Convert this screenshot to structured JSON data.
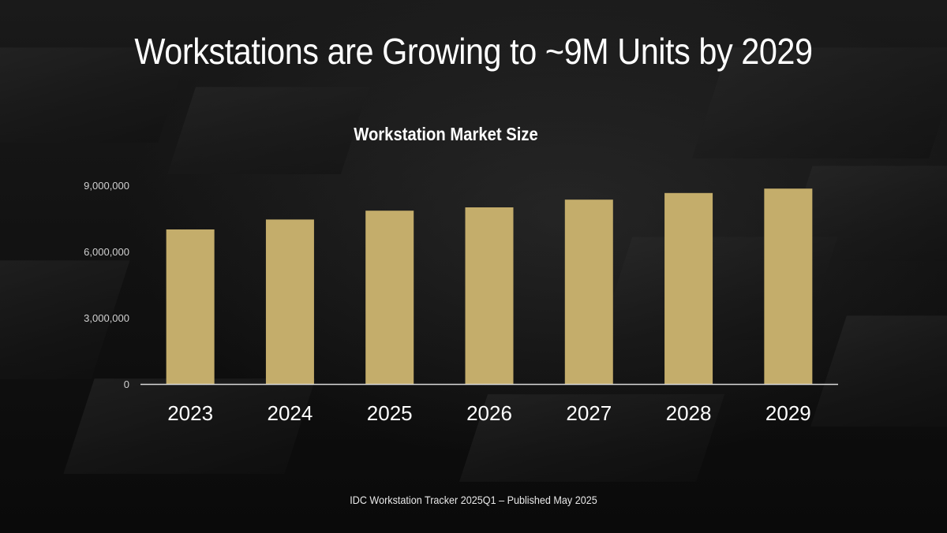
{
  "slide": {
    "title": "Workstations are Growing to ~9M Units by 2029",
    "footer": "IDC Workstation Tracker 2025Q1 – Published May 2025"
  },
  "colors": {
    "bar": "#c4ad6b",
    "axis": "#d9d9d9",
    "text": "#ffffff"
  },
  "chart_data": {
    "type": "bar",
    "title": "Workstation Market Size",
    "categories": [
      "2023",
      "2024",
      "2025",
      "2026",
      "2027",
      "2028",
      "2029"
    ],
    "values": [
      7000000,
      7450000,
      7850000,
      8000000,
      8350000,
      8650000,
      8850000
    ],
    "yticks": [
      0,
      3000000,
      6000000,
      9000000
    ],
    "ytick_labels": [
      "0",
      "3,000,000",
      "6,000,000",
      "9,000,000"
    ],
    "ylim": [
      0,
      9000000
    ],
    "xlabel": "",
    "ylabel": "",
    "grid": false,
    "legend": false
  }
}
